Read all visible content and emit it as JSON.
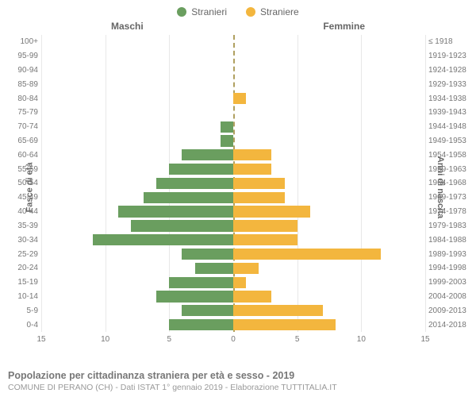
{
  "legend": {
    "male": {
      "label": "Stranieri",
      "color": "#6a9e5f"
    },
    "female": {
      "label": "Straniere",
      "color": "#f3b63e"
    }
  },
  "headers": {
    "male": "Maschi",
    "female": "Femmine"
  },
  "axis_labels": {
    "left": "Fasce di età",
    "right": "Anni di nascita"
  },
  "chart": {
    "type": "population-pyramid",
    "xlim": 15,
    "xticks": [
      15,
      10,
      5,
      0,
      5,
      10,
      15
    ],
    "grid_color": "#e8e8e8",
    "center_line_color": "#b0a060",
    "background_color": "#ffffff",
    "bar_height_ratio": 0.8,
    "categories": [
      {
        "age": "100+",
        "birth": "≤ 1918",
        "male": 0,
        "female": 0
      },
      {
        "age": "95-99",
        "birth": "1919-1923",
        "male": 0,
        "female": 0
      },
      {
        "age": "90-94",
        "birth": "1924-1928",
        "male": 0,
        "female": 0
      },
      {
        "age": "85-89",
        "birth": "1929-1933",
        "male": 0,
        "female": 0
      },
      {
        "age": "80-84",
        "birth": "1934-1938",
        "male": 0,
        "female": 1
      },
      {
        "age": "75-79",
        "birth": "1939-1943",
        "male": 0,
        "female": 0
      },
      {
        "age": "70-74",
        "birth": "1944-1948",
        "male": 1,
        "female": 0
      },
      {
        "age": "65-69",
        "birth": "1949-1953",
        "male": 1,
        "female": 0
      },
      {
        "age": "60-64",
        "birth": "1954-1958",
        "male": 4,
        "female": 3
      },
      {
        "age": "55-59",
        "birth": "1959-1963",
        "male": 5,
        "female": 3
      },
      {
        "age": "50-54",
        "birth": "1964-1968",
        "male": 6,
        "female": 4
      },
      {
        "age": "45-49",
        "birth": "1969-1973",
        "male": 7,
        "female": 4
      },
      {
        "age": "40-44",
        "birth": "1974-1978",
        "male": 9,
        "female": 6
      },
      {
        "age": "35-39",
        "birth": "1979-1983",
        "male": 8,
        "female": 5
      },
      {
        "age": "30-34",
        "birth": "1984-1988",
        "male": 11,
        "female": 5
      },
      {
        "age": "25-29",
        "birth": "1989-1993",
        "male": 4,
        "female": 11.5
      },
      {
        "age": "20-24",
        "birth": "1994-1998",
        "male": 3,
        "female": 2
      },
      {
        "age": "15-19",
        "birth": "1999-2003",
        "male": 5,
        "female": 1
      },
      {
        "age": "10-14",
        "birth": "2004-2008",
        "male": 6,
        "female": 3
      },
      {
        "age": "5-9",
        "birth": "2009-2013",
        "male": 4,
        "female": 7
      },
      {
        "age": "0-4",
        "birth": "2014-2018",
        "male": 5,
        "female": 8
      }
    ]
  },
  "footer": {
    "title": "Popolazione per cittadinanza straniera per età e sesso - 2019",
    "subtitle": "COMUNE DI PERANO (CH) - Dati ISTAT 1° gennaio 2019 - Elaborazione TUTTITALIA.IT"
  },
  "typography": {
    "legend_fontsize": 12,
    "header_fontsize": 12,
    "tick_fontsize": 10,
    "title_fontsize": 12.5,
    "subtitle_fontsize": 10.5,
    "label_color": "#777",
    "header_color": "#666"
  }
}
